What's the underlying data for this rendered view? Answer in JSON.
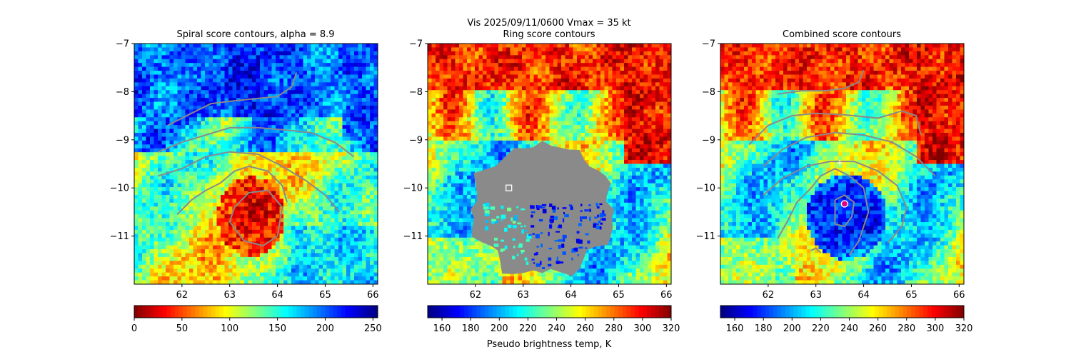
{
  "suptitle": "Vis  2025/09/11/0600    Vmax = 35 kt",
  "colorbar_label": "Pseudo brightness temp, K",
  "colors": {
    "contour": "#8a8a8a",
    "jet": [
      "#7f0000",
      "#ff0000",
      "#ff7f00",
      "#ffff00",
      "#7fff7f",
      "#00ffff",
      "#007fff",
      "#0000ff",
      "#00007f"
    ]
  },
  "chart_data": [
    {
      "type": "heatmap",
      "title": "Spiral score contours, alpha =  8.9",
      "xlim": [
        61,
        66.1
      ],
      "ylim": [
        -12,
        -7
      ],
      "xticks": [
        "62",
        "63",
        "64",
        "65",
        "66"
      ],
      "yticks": [
        "−7",
        "−8",
        "−9",
        "−10",
        "−11"
      ],
      "colorbar_ticks": [
        "0",
        "50",
        "100",
        "150",
        "200",
        "250"
      ],
      "colorbar_range": [
        0,
        255
      ],
      "field_type": "spiral",
      "contours": [
        [
          [
            61.7,
            -8.7
          ],
          [
            62.2,
            -8.45
          ],
          [
            62.6,
            -8.25
          ],
          [
            63.0,
            -8.2
          ],
          [
            63.5,
            -8.15
          ],
          [
            64.0,
            -8.1
          ],
          [
            64.3,
            -7.9
          ],
          [
            64.4,
            -7.6
          ]
        ],
        [
          [
            61.5,
            -9.25
          ],
          [
            62.0,
            -9.05
          ],
          [
            62.5,
            -8.9
          ],
          [
            63.0,
            -8.75
          ],
          [
            63.6,
            -8.75
          ],
          [
            64.2,
            -8.8
          ],
          [
            64.7,
            -8.85
          ],
          [
            65.2,
            -9.05
          ],
          [
            65.6,
            -9.35
          ]
        ],
        [
          [
            61.5,
            -9.75
          ],
          [
            62.0,
            -9.6
          ],
          [
            62.5,
            -9.35
          ],
          [
            63.0,
            -9.25
          ],
          [
            63.6,
            -9.3
          ],
          [
            64.1,
            -9.55
          ],
          [
            64.6,
            -9.85
          ],
          [
            65.0,
            -10.15
          ],
          [
            65.3,
            -10.5
          ]
        ],
        [
          [
            61.9,
            -10.55
          ],
          [
            62.2,
            -10.25
          ],
          [
            62.5,
            -10.05
          ],
          [
            62.8,
            -9.9
          ],
          [
            63.1,
            -9.65
          ],
          [
            63.4,
            -9.55
          ],
          [
            63.8,
            -9.65
          ],
          [
            64.1,
            -9.95
          ],
          [
            64.2,
            -10.3
          ]
        ],
        [
          [
            63.1,
            -10.4
          ],
          [
            63.4,
            -10.1
          ],
          [
            63.8,
            -10.05
          ],
          [
            64.1,
            -10.4
          ],
          [
            64.0,
            -11.0
          ],
          [
            63.7,
            -11.2
          ],
          [
            63.3,
            -11.1
          ],
          [
            63.0,
            -10.7
          ],
          [
            63.1,
            -10.4
          ]
        ]
      ],
      "markers": []
    },
    {
      "type": "heatmap",
      "title": "Ring score contours",
      "xlim": [
        61,
        66.1
      ],
      "ylim": [
        -12,
        -7
      ],
      "xticks": [
        "62",
        "63",
        "64",
        "65",
        "66"
      ],
      "yticks": [
        "−7",
        "−8",
        "−9",
        "−10",
        "−11"
      ],
      "colorbar_ticks": [
        "160",
        "180",
        "200",
        "220",
        "240",
        "260",
        "280",
        "300",
        "320"
      ],
      "colorbar_range": [
        150,
        320
      ],
      "field_type": "ring",
      "contours": [],
      "markers": [
        {
          "kind": "square",
          "x": 62.7,
          "y": -10.0
        }
      ]
    },
    {
      "type": "heatmap",
      "title": "Combined score contours",
      "xlim": [
        61,
        66.1
      ],
      "ylim": [
        -12,
        -7
      ],
      "xticks": [
        "62",
        "63",
        "64",
        "65",
        "66"
      ],
      "yticks": [
        "−7",
        "−8",
        "−9",
        "−10",
        "−11"
      ],
      "colorbar_ticks": [
        "160",
        "180",
        "200",
        "220",
        "240",
        "260",
        "280",
        "300",
        "320"
      ],
      "colorbar_range": [
        150,
        320
      ],
      "field_type": "combined",
      "contours": [
        [
          [
            62.2,
            -8.05
          ],
          [
            62.7,
            -7.98
          ],
          [
            63.2,
            -7.98
          ],
          [
            63.6,
            -7.93
          ],
          [
            63.9,
            -7.8
          ],
          [
            64.0,
            -7.55
          ]
        ],
        [
          [
            61.6,
            -9.1
          ],
          [
            62.0,
            -8.7
          ],
          [
            62.5,
            -8.5
          ],
          [
            63.0,
            -8.45
          ],
          [
            63.6,
            -8.48
          ],
          [
            64.3,
            -8.55
          ],
          [
            64.8,
            -8.4
          ],
          [
            65.1,
            -8.5
          ],
          [
            65.2,
            -8.9
          ]
        ],
        [
          [
            61.9,
            -9.55
          ],
          [
            62.3,
            -9.2
          ],
          [
            62.8,
            -8.95
          ],
          [
            63.4,
            -8.85
          ],
          [
            64.0,
            -8.9
          ],
          [
            64.6,
            -9.05
          ],
          [
            65.1,
            -9.35
          ],
          [
            65.5,
            -9.75
          ]
        ],
        [
          [
            61.9,
            -10.15
          ],
          [
            62.3,
            -9.8
          ],
          [
            62.8,
            -9.55
          ],
          [
            63.3,
            -9.45
          ],
          [
            63.8,
            -9.45
          ],
          [
            64.3,
            -9.65
          ],
          [
            64.7,
            -9.95
          ],
          [
            64.9,
            -10.4
          ],
          [
            64.8,
            -10.8
          ],
          [
            64.5,
            -11.15
          ]
        ],
        [
          [
            62.2,
            -11.05
          ],
          [
            62.4,
            -10.7
          ],
          [
            62.6,
            -10.3
          ],
          [
            62.9,
            -10.0
          ],
          [
            63.1,
            -9.75
          ],
          [
            63.4,
            -9.6
          ],
          [
            63.7,
            -9.75
          ],
          [
            64.0,
            -10.0
          ],
          [
            64.1,
            -10.5
          ],
          [
            63.9,
            -11.1
          ],
          [
            63.7,
            -11.4
          ]
        ],
        [
          [
            62.9,
            -11.3
          ],
          [
            63.0,
            -11.25
          ],
          [
            63.1,
            -11.35
          ]
        ],
        [
          [
            63.4,
            -10.25
          ],
          [
            63.6,
            -10.15
          ],
          [
            63.8,
            -10.3
          ],
          [
            63.75,
            -10.6
          ],
          [
            63.6,
            -10.8
          ],
          [
            63.4,
            -10.75
          ],
          [
            63.4,
            -10.25
          ]
        ]
      ],
      "markers": [
        {
          "kind": "circle",
          "x": 63.6,
          "y": -10.33
        },
        {
          "kind": "plus",
          "x": 63.5,
          "y": -9.48
        }
      ]
    }
  ]
}
